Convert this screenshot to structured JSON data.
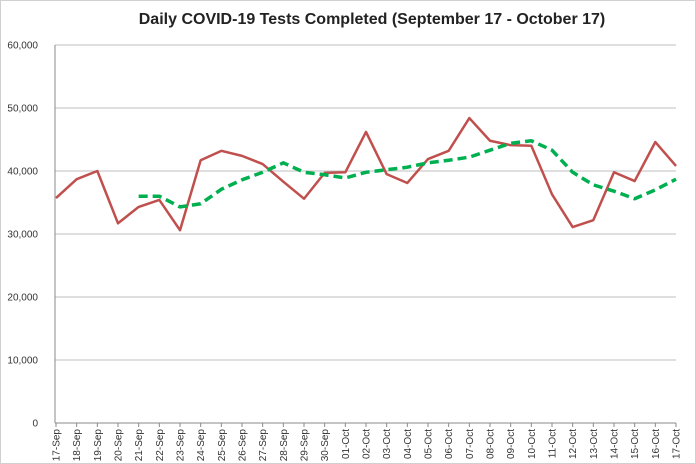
{
  "chart_data": {
    "type": "line",
    "title": "Daily COVID-19 Tests Completed (September 17 - October 17)",
    "categories": [
      "17-Sep",
      "18-Sep",
      "19-Sep",
      "20-Sep",
      "21-Sep",
      "22-Sep",
      "23-Sep",
      "24-Sep",
      "25-Sep",
      "26-Sep",
      "27-Sep",
      "28-Sep",
      "29-Sep",
      "30-Sep",
      "01-Oct",
      "02-Oct",
      "03-Oct",
      "04-Oct",
      "05-Oct",
      "06-Oct",
      "07-Oct",
      "08-Oct",
      "09-Oct",
      "10-Oct",
      "11-Oct",
      "12-Oct",
      "13-Oct",
      "14-Oct",
      "15-Oct",
      "16-Oct",
      "17-Oct"
    ],
    "series": [
      {
        "color": "#c0504d",
        "dashed": false,
        "values": [
          35700,
          38700,
          40000,
          31700,
          34300,
          35400,
          30600,
          41700,
          43200,
          42400,
          41100,
          38300,
          35600,
          39700,
          39800,
          46200,
          39500,
          38100,
          41900,
          43200,
          48400,
          44800,
          44100,
          44000,
          36300,
          31100,
          32200,
          39800,
          38400,
          44600,
          40800
        ]
      },
      {
        "color": "#00b050",
        "dashed": true,
        "values": [
          null,
          null,
          null,
          null,
          36000,
          36000,
          34300,
          34800,
          37100,
          38600,
          39800,
          41300,
          39800,
          39400,
          38900,
          39800,
          40200,
          40600,
          41300,
          41700,
          42200,
          43300,
          44400,
          44800,
          43300,
          39800,
          37800,
          36800,
          35600,
          37000,
          38700
        ]
      }
    ],
    "ylim": [
      0,
      60000
    ],
    "yticks": [
      0,
      {
        "value": 10000,
        "label": "10,000"
      },
      {
        "value": 20000,
        "label": "20,000"
      },
      {
        "value": 30000,
        "label": "30,000"
      },
      {
        "value": 40000,
        "label": "40,000"
      },
      {
        "value": 50000,
        "label": "50,000"
      },
      {
        "value": 60000,
        "label": "60,000"
      }
    ],
    "grid": true
  }
}
